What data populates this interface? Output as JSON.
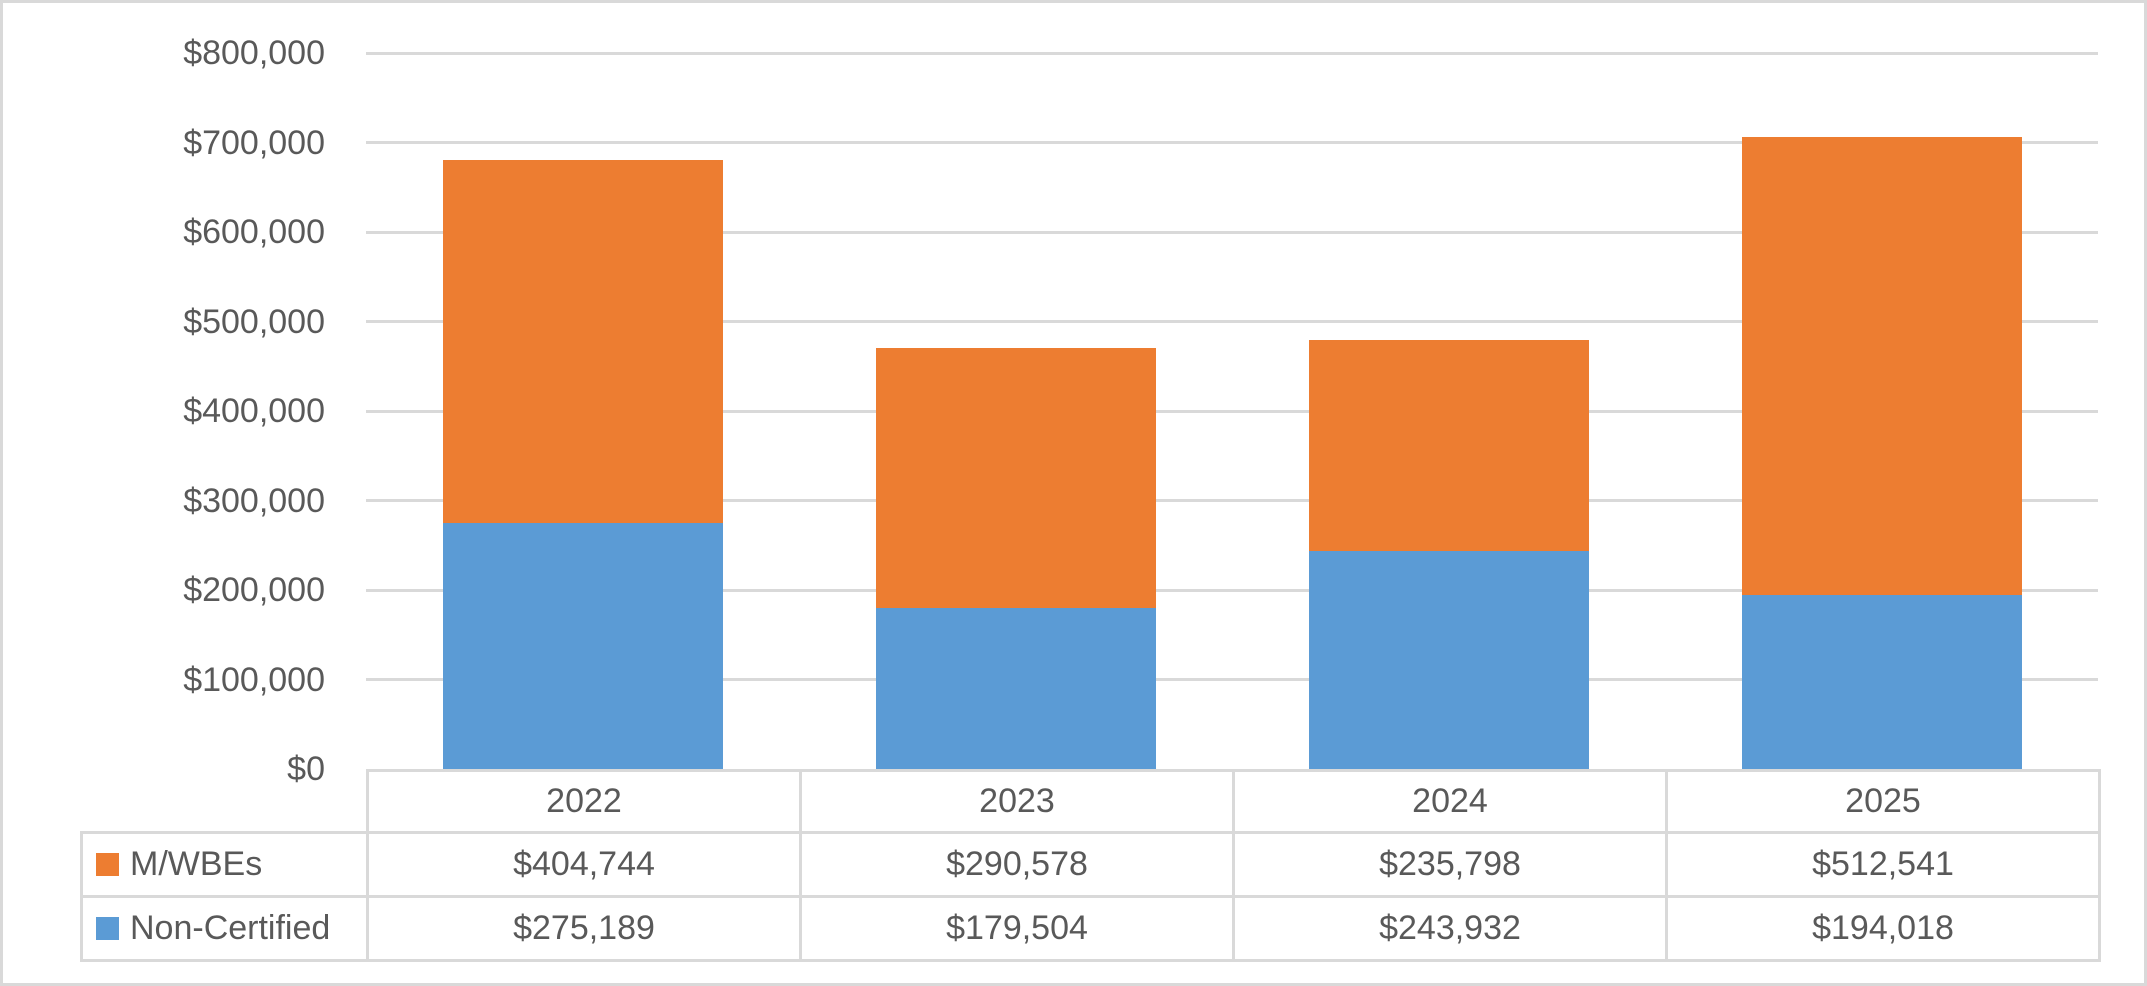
{
  "chart_data": {
    "type": "bar",
    "stacked": true,
    "title": "",
    "xlabel": "",
    "ylabel": "",
    "grid": true,
    "legend_position": "left-of-data-table",
    "categories": [
      "2022",
      "2023",
      "2024",
      "2025"
    ],
    "series": [
      {
        "name": "M/WBEs",
        "color": "#ED7D31",
        "values": [
          404744,
          290578,
          235798,
          512541
        ],
        "formatted": [
          "$404,744",
          "$290,578",
          "$235,798",
          "$512,541"
        ]
      },
      {
        "name": "Non-Certified",
        "color": "#5B9BD5",
        "values": [
          275189,
          179504,
          243932,
          194018
        ],
        "formatted": [
          "$275,189",
          "$179,504",
          "$243,932",
          "$194,018"
        ]
      }
    ],
    "stack_order_bottom_to_top": [
      "Non-Certified",
      "M/WBEs"
    ],
    "y_axis": {
      "min": 0,
      "max": 800000,
      "tick_interval": 100000,
      "tick_labels": [
        "$0",
        "$100,000",
        "$200,000",
        "$300,000",
        "$400,000",
        "$500,000",
        "$600,000",
        "$700,000",
        "$800,000"
      ]
    },
    "style": {
      "text_color": "#595959",
      "grid_color": "#D9D9D9",
      "frame_border_color": "#D9D9D9",
      "background": "#FFFFFF"
    }
  }
}
